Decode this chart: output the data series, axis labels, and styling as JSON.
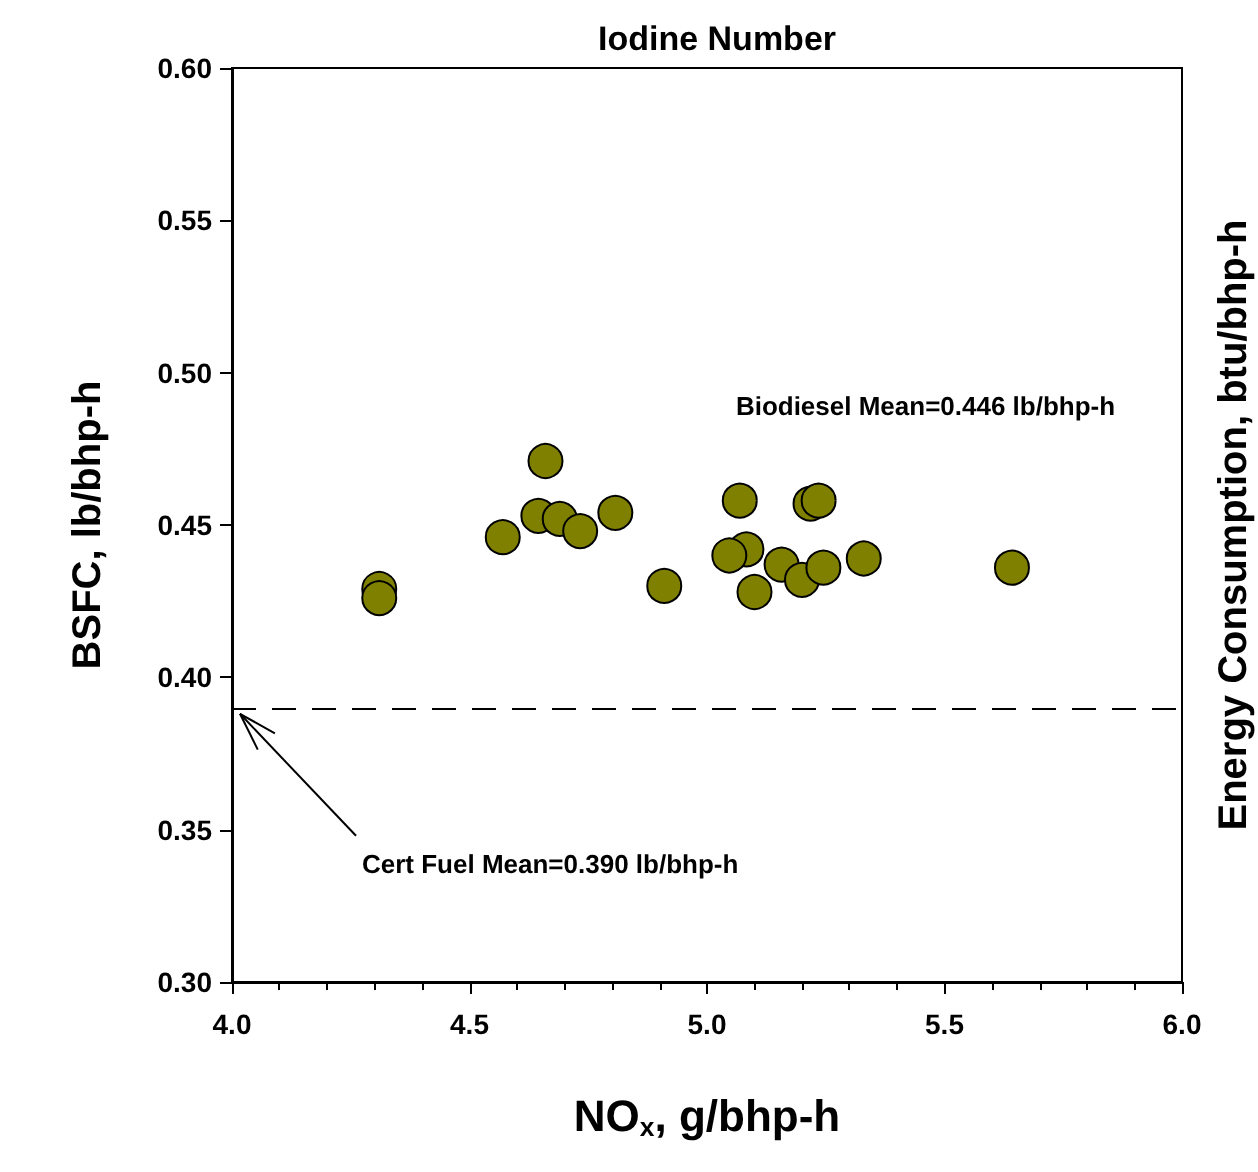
{
  "chart_data": {
    "type": "scatter",
    "title": "Iodine Number",
    "xlabel": "NO$_{x}$, g/bhp-h",
    "ylabel": "BSFC, lb/bhp-h",
    "y2label": "Energy Consumption, btu/bhp-h",
    "x": [
      4.31,
      4.31,
      4.57,
      4.66,
      4.645,
      4.69,
      4.733,
      4.807,
      4.91,
      5.069,
      5.083,
      5.047,
      5.157,
      5.1,
      5.2,
      5.218,
      5.235,
      5.245,
      5.33,
      5.642
    ],
    "series": [
      {
        "color": "#808000",
        "values": [
          0.429,
          0.426,
          0.446,
          0.471,
          0.453,
          0.452,
          0.448,
          0.454,
          0.43,
          0.458,
          0.442,
          0.44,
          0.437,
          0.428,
          0.432,
          0.457,
          0.458,
          0.436,
          0.439,
          0.436
        ]
      }
    ],
    "xlim": [
      4.0,
      6.0
    ],
    "xticks": [
      {
        "value": 4,
        "label": "4.0"
      },
      4.5,
      {
        "value": 5,
        "label": "5.0"
      },
      5.5,
      {
        "value": 6,
        "label": "6.0"
      }
    ],
    "ylim": [
      0.3,
      0.6
    ],
    "yticks": [
      {
        "value": 0.3,
        "label": "0.30"
      },
      0.35,
      {
        "value": 0.4,
        "label": "0.40"
      },
      0.45,
      {
        "value": 0.5,
        "label": "0.50"
      },
      0.55,
      {
        "value": 0.6,
        "label": "0.60"
      }
    ],
    "ref_lines": [
      {
        "axis": "y",
        "value": 0.39,
        "color": "#000000",
        "line_style": "dashed"
      }
    ],
    "annotations": [
      "Biodiesel Mean=0.446 lb/bhp-h",
      {
        "text": "Cert Fuel Mean=0.390 lb/bhp-h",
        "x": 4.0,
        "y": 0.39
      }
    ],
    "marker": "circle"
  }
}
